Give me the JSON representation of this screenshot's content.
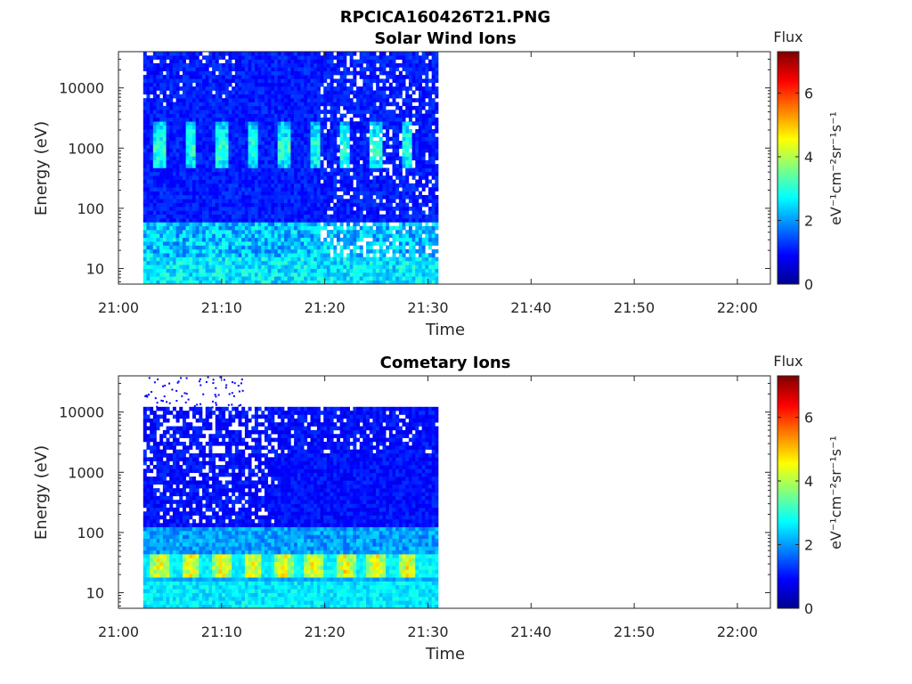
{
  "figure": {
    "filename_title": "RPCICA160426T21.PNG"
  },
  "colorbar_label": "Flux",
  "colorbar_unit": "eV⁻¹cm⁻²sr⁻¹s⁻¹",
  "colormap": [
    "#00008f",
    "#0000ff",
    "#0080ff",
    "#00ffff",
    "#80ff80",
    "#ffff00",
    "#ff8000",
    "#ff0000",
    "#800000"
  ],
  "chart_data": [
    {
      "type": "heatmap",
      "title": "Solar Wind Ions",
      "xlabel": "Time",
      "ylabel": "Energy (eV)",
      "x_ticks": [
        "21:00",
        "21:10",
        "21:20",
        "21:30",
        "21:40",
        "21:50",
        "22:00"
      ],
      "y_ticks": [
        "10",
        "100",
        "1000",
        "10000"
      ],
      "y_scale": "log",
      "ylim": [
        5.5,
        40000
      ],
      "colorbar": {
        "label": "Flux",
        "ticks": [
          "0",
          "2",
          "4",
          "6"
        ],
        "range": [
          0,
          7.3
        ]
      },
      "data_time_range": [
        "21:02",
        "21:31"
      ],
      "features": [
        {
          "desc": "periodic proton bursts",
          "energy_eV": 1000,
          "flux": 3.0,
          "times": [
            "21:04",
            "21:07",
            "21:10",
            "21:13",
            "21:16",
            "21:19",
            "21:22",
            "21:25",
            "21:28"
          ]
        },
        {
          "desc": "low energy band",
          "energy_eV": 25,
          "flux": 2.5
        },
        {
          "desc": "background",
          "energy_eV_range": [
            6,
            40000
          ],
          "flux": 1.0
        }
      ]
    },
    {
      "type": "heatmap",
      "title": "Cometary Ions",
      "xlabel": "Time",
      "ylabel": "Energy (eV)",
      "x_ticks": [
        "21:00",
        "21:10",
        "21:20",
        "21:30",
        "21:40",
        "21:50",
        "22:00"
      ],
      "y_ticks": [
        "10",
        "100",
        "1000",
        "10000"
      ],
      "y_scale": "log",
      "ylim": [
        5.5,
        40000
      ],
      "colorbar": {
        "label": "Flux",
        "ticks": [
          "0",
          "2",
          "4",
          "6"
        ],
        "range": [
          0,
          7.3
        ]
      },
      "data_time_range": [
        "21:02",
        "21:31"
      ],
      "features": [
        {
          "desc": "cometary ion band",
          "energy_eV_range": [
            20,
            40
          ],
          "flux": 5.0,
          "times": [
            "21:04",
            "21:07",
            "21:10",
            "21:13",
            "21:16",
            "21:19",
            "21:22",
            "21:25",
            "21:28"
          ]
        },
        {
          "desc": "low energy background",
          "energy_eV_range": [
            6,
            100
          ],
          "flux": 2.5
        },
        {
          "desc": "upper cutoff",
          "energy_eV": 11000
        }
      ]
    }
  ]
}
